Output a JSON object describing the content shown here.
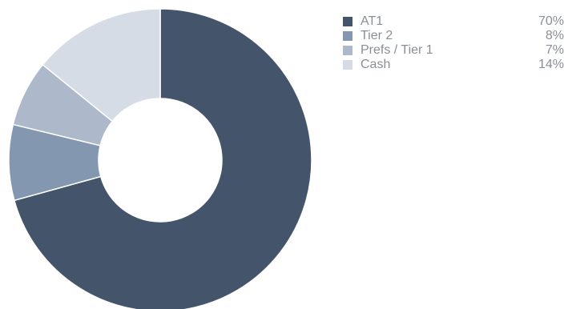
{
  "chart_data": {
    "type": "pie",
    "donut": true,
    "categories": [
      "AT1",
      "Tier 2",
      "Prefs / Tier 1",
      "Cash"
    ],
    "values": [
      70,
      8,
      7,
      14
    ],
    "value_labels": [
      "70%",
      "8%",
      "7%",
      "14%"
    ],
    "colors": [
      "#44546a",
      "#8497b0",
      "#adb9ca",
      "#d6dce5"
    ],
    "legend_position": "top-right",
    "start_angle": "12 o'clock",
    "direction": "clockwise"
  }
}
